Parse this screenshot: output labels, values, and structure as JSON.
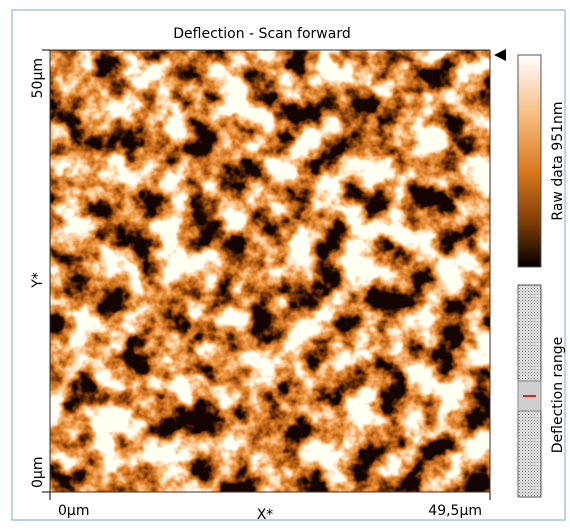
{
  "header": {
    "title": "Deflection - Scan forward"
  },
  "image": {
    "x_axis": {
      "start": "0µm",
      "label": "X*",
      "end": "49,5µm"
    },
    "y_axis": {
      "top": "50µm",
      "label": "Y*",
      "bottom": "0µm"
    }
  },
  "colorbar": {
    "label": "Raw data 951nm"
  },
  "range_bar": {
    "label": "Deflection range"
  }
}
